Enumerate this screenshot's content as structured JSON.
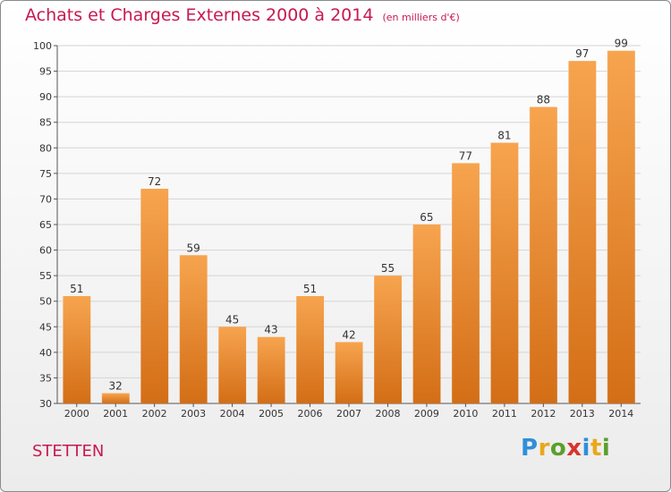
{
  "header": {
    "title": "Achats et Charges Externes 2000 à 2014",
    "subtitle": "(en milliers d'€)"
  },
  "footer": {
    "commune": "STETTEN",
    "brand_letters": [
      {
        "ch": "P",
        "color": "#2f8fd8"
      },
      {
        "ch": "r",
        "color": "#e8a81c"
      },
      {
        "ch": "o",
        "color": "#5aa02c"
      },
      {
        "ch": "x",
        "color": "#d9342b"
      },
      {
        "ch": "i",
        "color": "#2f8fd8"
      },
      {
        "ch": "t",
        "color": "#e8a81c"
      },
      {
        "ch": "i",
        "color": "#5aa02c"
      }
    ]
  },
  "chart_data": {
    "type": "bar",
    "title": "Achats et Charges Externes 2000 à 2014",
    "subtitle": "(en milliers d'€)",
    "categories": [
      "2000",
      "2001",
      "2002",
      "2003",
      "2004",
      "2005",
      "2006",
      "2007",
      "2008",
      "2009",
      "2010",
      "2011",
      "2012",
      "2013",
      "2014"
    ],
    "values": [
      51,
      32,
      72,
      59,
      45,
      43,
      51,
      42,
      55,
      65,
      77,
      81,
      88,
      97,
      99
    ],
    "ylim": [
      30,
      100
    ],
    "yticks": [
      30,
      35,
      40,
      45,
      50,
      55,
      60,
      65,
      70,
      75,
      80,
      85,
      90,
      95,
      100
    ],
    "grid": true,
    "bar_color_top": "#f7a44f",
    "bar_color_bottom": "#d36e16",
    "grid_color": "#d4d4d4"
  }
}
